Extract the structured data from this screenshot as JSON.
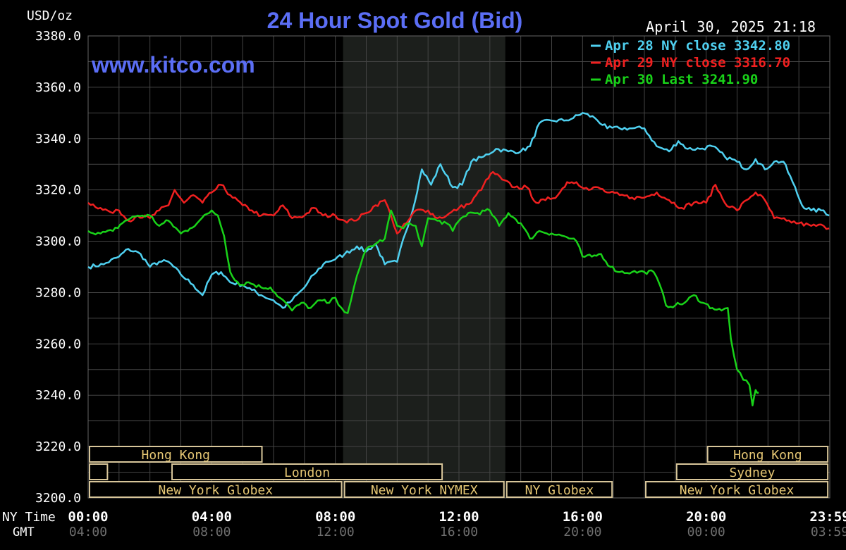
{
  "chart_data": {
    "type": "line",
    "title": "24 Hour Spot Gold (Bid)",
    "watermark": "www.kitco.com",
    "timestamp": "April 30, 2025 21:18",
    "ylabel": "USD/oz",
    "ylim": [
      3200,
      3380
    ],
    "yticks": [
      "3200.0",
      "3220.0",
      "3240.0",
      "3260.0",
      "3280.0",
      "3300.0",
      "3320.0",
      "3340.0",
      "3360.0",
      "3380.0"
    ],
    "xlim": [
      0,
      24
    ],
    "x_ticks_ny": [
      "00:00",
      "04:00",
      "08:00",
      "12:00",
      "16:00",
      "20:00",
      "23:59"
    ],
    "x_ticks_gmt": [
      "04:00",
      "08:00",
      "12:00",
      "16:00",
      "20:00",
      "00:00",
      "03:59"
    ],
    "x_row_label_ny": "NY Time",
    "x_row_label_gmt": "GMT",
    "grid": true,
    "legend_position": "top-right",
    "shaded_region": [
      8.25,
      13.5
    ],
    "series": [
      {
        "name": "Apr 28 NY close 3342.80",
        "color": "#4fd0f0",
        "points": [
          [
            0,
            3290
          ],
          [
            0.5,
            3291
          ],
          [
            1,
            3294
          ],
          [
            1.3,
            3297
          ],
          [
            1.7,
            3295
          ],
          [
            2,
            3290
          ],
          [
            2.3,
            3292
          ],
          [
            2.6,
            3292
          ],
          [
            3,
            3287
          ],
          [
            3.4,
            3283
          ],
          [
            3.7,
            3279
          ],
          [
            4,
            3287
          ],
          [
            4.3,
            3288
          ],
          [
            4.6,
            3284
          ],
          [
            5,
            3283
          ],
          [
            5.3,
            3281
          ],
          [
            5.6,
            3279
          ],
          [
            6,
            3277
          ],
          [
            6.3,
            3274
          ],
          [
            6.6,
            3277
          ],
          [
            7,
            3282
          ],
          [
            7.3,
            3287
          ],
          [
            7.7,
            3292
          ],
          [
            8,
            3293
          ],
          [
            8.3,
            3295
          ],
          [
            8.7,
            3298
          ],
          [
            9,
            3296
          ],
          [
            9.3,
            3299
          ],
          [
            9.6,
            3291
          ],
          [
            10,
            3292
          ],
          [
            10.2,
            3301
          ],
          [
            10.5,
            3312
          ],
          [
            10.8,
            3328
          ],
          [
            11.1,
            3322
          ],
          [
            11.4,
            3330
          ],
          [
            11.8,
            3321
          ],
          [
            12.1,
            3322
          ],
          [
            12.4,
            3331
          ],
          [
            12.8,
            3333
          ],
          [
            13.2,
            3336
          ],
          [
            13.6,
            3335
          ],
          [
            14,
            3335
          ],
          [
            14.3,
            3337
          ],
          [
            14.6,
            3346
          ],
          [
            15,
            3347
          ],
          [
            15.4,
            3347
          ],
          [
            15.7,
            3348
          ],
          [
            16,
            3350
          ],
          [
            16.4,
            3348
          ],
          [
            16.8,
            3344
          ],
          [
            17.2,
            3344
          ],
          [
            17.6,
            3344
          ],
          [
            18,
            3344
          ],
          [
            18.4,
            3337
          ],
          [
            18.8,
            3335
          ],
          [
            19.1,
            3339
          ],
          [
            19.4,
            3336
          ],
          [
            19.8,
            3336
          ],
          [
            20.2,
            3337
          ],
          [
            20.6,
            3333
          ],
          [
            21,
            3331
          ],
          [
            21.3,
            3328
          ],
          [
            21.6,
            3332
          ],
          [
            21.9,
            3328
          ],
          [
            22.2,
            3331
          ],
          [
            22.5,
            3331
          ],
          [
            22.8,
            3323
          ],
          [
            23.1,
            3314
          ],
          [
            23.4,
            3312
          ],
          [
            23.8,
            3312
          ],
          [
            23.98,
            3310
          ]
        ]
      },
      {
        "name": "Apr 29 NY close 3316.70",
        "color": "#f02020",
        "points": [
          [
            0,
            3315
          ],
          [
            0.4,
            3313
          ],
          [
            0.8,
            3311
          ],
          [
            1,
            3312
          ],
          [
            1.3,
            3308
          ],
          [
            1.6,
            3310
          ],
          [
            2,
            3309
          ],
          [
            2.3,
            3312
          ],
          [
            2.6,
            3314
          ],
          [
            2.8,
            3320
          ],
          [
            3.1,
            3315
          ],
          [
            3.4,
            3318
          ],
          [
            3.7,
            3315
          ],
          [
            4,
            3319
          ],
          [
            4.3,
            3322
          ],
          [
            4.6,
            3318
          ],
          [
            5,
            3314
          ],
          [
            5.3,
            3312
          ],
          [
            5.6,
            3310
          ],
          [
            6,
            3310
          ],
          [
            6.3,
            3314
          ],
          [
            6.6,
            3309
          ],
          [
            7,
            3310
          ],
          [
            7.3,
            3313
          ],
          [
            7.6,
            3310
          ],
          [
            8,
            3310
          ],
          [
            8.3,
            3308
          ],
          [
            8.6,
            3308
          ],
          [
            9,
            3311
          ],
          [
            9.3,
            3314
          ],
          [
            9.6,
            3316
          ],
          [
            9.8,
            3310
          ],
          [
            10,
            3303
          ],
          [
            10.3,
            3307
          ],
          [
            10.6,
            3312
          ],
          [
            11,
            3312
          ],
          [
            11.3,
            3309
          ],
          [
            11.6,
            3310
          ],
          [
            12,
            3313
          ],
          [
            12.4,
            3315
          ],
          [
            12.8,
            3322
          ],
          [
            13.1,
            3327
          ],
          [
            13.4,
            3324
          ],
          [
            13.8,
            3321
          ],
          [
            14.2,
            3321
          ],
          [
            14.5,
            3315
          ],
          [
            14.8,
            3316
          ],
          [
            15.2,
            3318
          ],
          [
            15.5,
            3323
          ],
          [
            15.8,
            3323
          ],
          [
            16.2,
            3320
          ],
          [
            16.5,
            3321
          ],
          [
            16.8,
            3319
          ],
          [
            17.2,
            3318
          ],
          [
            17.6,
            3317
          ],
          [
            18,
            3317
          ],
          [
            18.4,
            3319
          ],
          [
            18.8,
            3316
          ],
          [
            19.2,
            3313
          ],
          [
            19.6,
            3315
          ],
          [
            20,
            3315
          ],
          [
            20.3,
            3322
          ],
          [
            20.6,
            3315
          ],
          [
            21,
            3312
          ],
          [
            21.3,
            3316
          ],
          [
            21.6,
            3319
          ],
          [
            21.9,
            3316
          ],
          [
            22.2,
            3309
          ],
          [
            22.6,
            3308
          ],
          [
            23,
            3307
          ],
          [
            23.4,
            3306
          ],
          [
            23.8,
            3306
          ],
          [
            23.98,
            3305
          ]
        ]
      },
      {
        "name": "Apr 30 Last 3241.90",
        "color": "#19d219",
        "points": [
          [
            0,
            3304
          ],
          [
            0.4,
            3303
          ],
          [
            0.8,
            3304
          ],
          [
            1.2,
            3308
          ],
          [
            1.6,
            3310
          ],
          [
            2,
            3310
          ],
          [
            2.3,
            3306
          ],
          [
            2.6,
            3308
          ],
          [
            3,
            3303
          ],
          [
            3.3,
            3305
          ],
          [
            3.6,
            3308
          ],
          [
            4,
            3312
          ],
          [
            4.2,
            3310
          ],
          [
            4.4,
            3302
          ],
          [
            4.6,
            3288
          ],
          [
            4.9,
            3283
          ],
          [
            5.2,
            3284
          ],
          [
            5.6,
            3282
          ],
          [
            5.9,
            3282
          ],
          [
            6.2,
            3278
          ],
          [
            6.4,
            3276
          ],
          [
            6.6,
            3273
          ],
          [
            6.9,
            3276
          ],
          [
            7.2,
            3274
          ],
          [
            7.5,
            3277
          ],
          [
            7.8,
            3276
          ],
          [
            8,
            3278
          ],
          [
            8.2,
            3274
          ],
          [
            8.4,
            3272
          ],
          [
            8.6,
            3282
          ],
          [
            8.8,
            3290
          ],
          [
            9,
            3297
          ],
          [
            9.3,
            3299
          ],
          [
            9.6,
            3301
          ],
          [
            9.8,
            3312
          ],
          [
            10,
            3306
          ],
          [
            10.2,
            3305
          ],
          [
            10.4,
            3307
          ],
          [
            10.6,
            3306
          ],
          [
            10.8,
            3298
          ],
          [
            11,
            3309
          ],
          [
            11.3,
            3308
          ],
          [
            11.6,
            3307
          ],
          [
            11.8,
            3304
          ],
          [
            12,
            3308
          ],
          [
            12.3,
            3311
          ],
          [
            12.6,
            3311
          ],
          [
            13,
            3312
          ],
          [
            13.3,
            3306
          ],
          [
            13.6,
            3311
          ],
          [
            14,
            3307
          ],
          [
            14.3,
            3301
          ],
          [
            14.6,
            3304
          ],
          [
            15,
            3303
          ],
          [
            15.4,
            3302
          ],
          [
            15.8,
            3300
          ],
          [
            16,
            3294
          ],
          [
            16.3,
            3294
          ],
          [
            16.6,
            3295
          ],
          [
            16.9,
            3290
          ],
          [
            17.2,
            3288
          ],
          [
            17.6,
            3288
          ],
          [
            18,
            3288
          ],
          [
            18.3,
            3288
          ],
          [
            18.5,
            3283
          ],
          [
            18.7,
            3275
          ],
          [
            19,
            3275
          ],
          [
            19.3,
            3276
          ],
          [
            19.6,
            3279
          ],
          [
            19.9,
            3276
          ],
          [
            20.2,
            3274
          ],
          [
            20.5,
            3273
          ],
          [
            20.7,
            3274
          ],
          [
            20.8,
            3262
          ],
          [
            21,
            3250
          ],
          [
            21.2,
            3246
          ],
          [
            21.4,
            3244
          ],
          [
            21.5,
            3236
          ],
          [
            21.6,
            3242
          ],
          [
            21.7,
            3241
          ]
        ]
      }
    ],
    "sessions": [
      {
        "label": "Hong Kong",
        "start": 0,
        "end": 5.67,
        "row": 0
      },
      {
        "label": "",
        "start": 0,
        "end": 0.67,
        "row": 1
      },
      {
        "label": "London",
        "start": 2.67,
        "end": 11.5,
        "row": 1
      },
      {
        "label": "New York Globex",
        "start": 0,
        "end": 8.25,
        "row": 2
      },
      {
        "label": "New York NYMEX",
        "start": 8.25,
        "end": 13.5,
        "row": 2
      },
      {
        "label": "NY Globex",
        "start": 13.5,
        "end": 17.0,
        "row": 2
      },
      {
        "label": "Hong Kong",
        "start": 20.0,
        "end": 23.98,
        "row": 0
      },
      {
        "label": "Sydney",
        "start": 19.0,
        "end": 23.98,
        "row": 1
      },
      {
        "label": "New York Globex",
        "start": 18.0,
        "end": 23.98,
        "row": 2
      }
    ]
  }
}
